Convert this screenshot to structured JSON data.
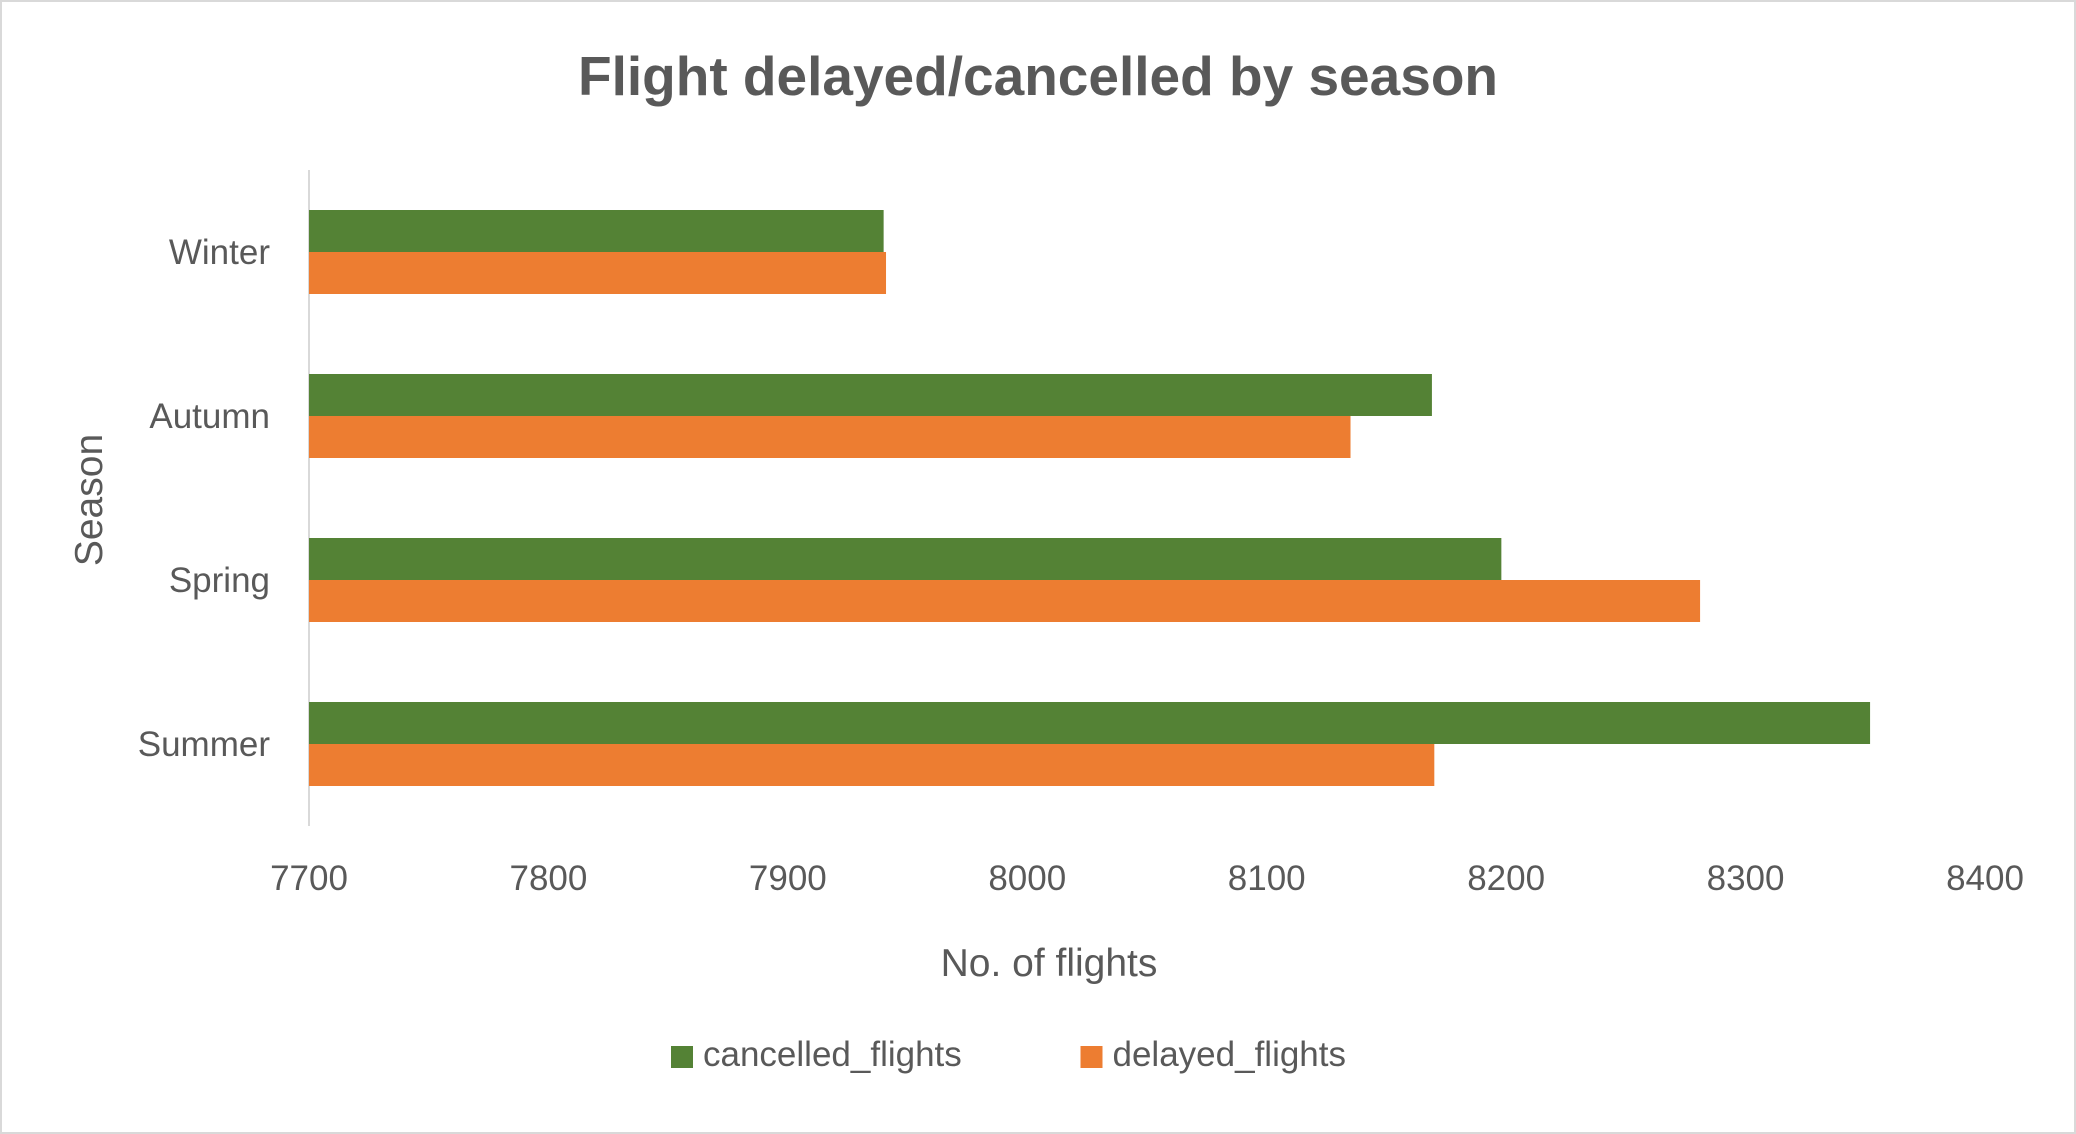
{
  "chart_data": {
    "type": "bar",
    "orientation": "horizontal",
    "title": "Flight delayed/cancelled by season",
    "xlabel": "No. of flights",
    "ylabel": "Season",
    "categories": [
      "Winter",
      "Autumn",
      "Spring",
      "Summer"
    ],
    "series": [
      {
        "name": "cancelled_flights",
        "color": "#548235",
        "values": [
          7940,
          8169,
          8198,
          8352
        ]
      },
      {
        "name": "delayed_flights",
        "color": "#ed7d31",
        "values": [
          7941,
          8135,
          8281,
          8170
        ]
      }
    ],
    "xlim": [
      7700,
      8400
    ],
    "xticks": [
      "7700",
      "7800",
      "7900",
      "8000",
      "8100",
      "8200",
      "8300",
      "8400"
    ],
    "grid": false,
    "legend_position": "bottom"
  }
}
